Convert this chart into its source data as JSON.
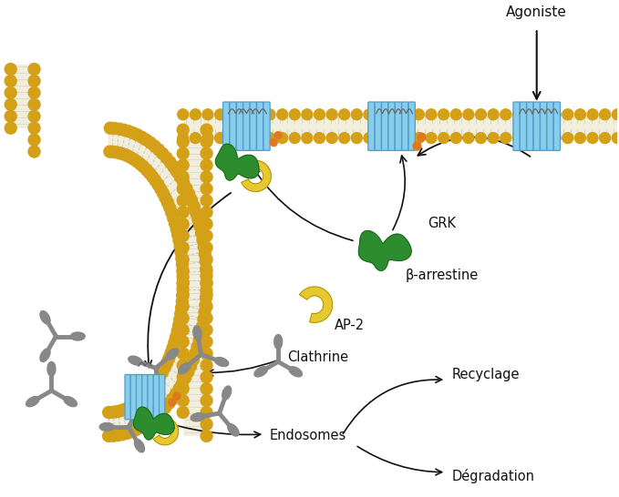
{
  "bg_color": "#ffffff",
  "membrane_color": "#d4a017",
  "membrane_inner_color": "#f2eedc",
  "receptor_color": "#87ceeb",
  "receptor_stroke": "#5599cc",
  "green_protein_color": "#2d8c2d",
  "yellow_protein_color": "#e8c830",
  "orange_dot_color": "#e07820",
  "clathrin_color": "#888888",
  "arrow_color": "#111111",
  "text_color": "#111111",
  "labels": {
    "agoniste": "Agoniste",
    "grk": "GRK",
    "b_arrestine": "β-arrestine",
    "ap2": "AP-2",
    "clathrine": "Clathrine",
    "endosomes": "Endosomes",
    "recyclage": "Recyclage",
    "degradation": "Dégradation"
  },
  "figsize": [
    6.79,
    5.46
  ],
  "dpi": 100
}
